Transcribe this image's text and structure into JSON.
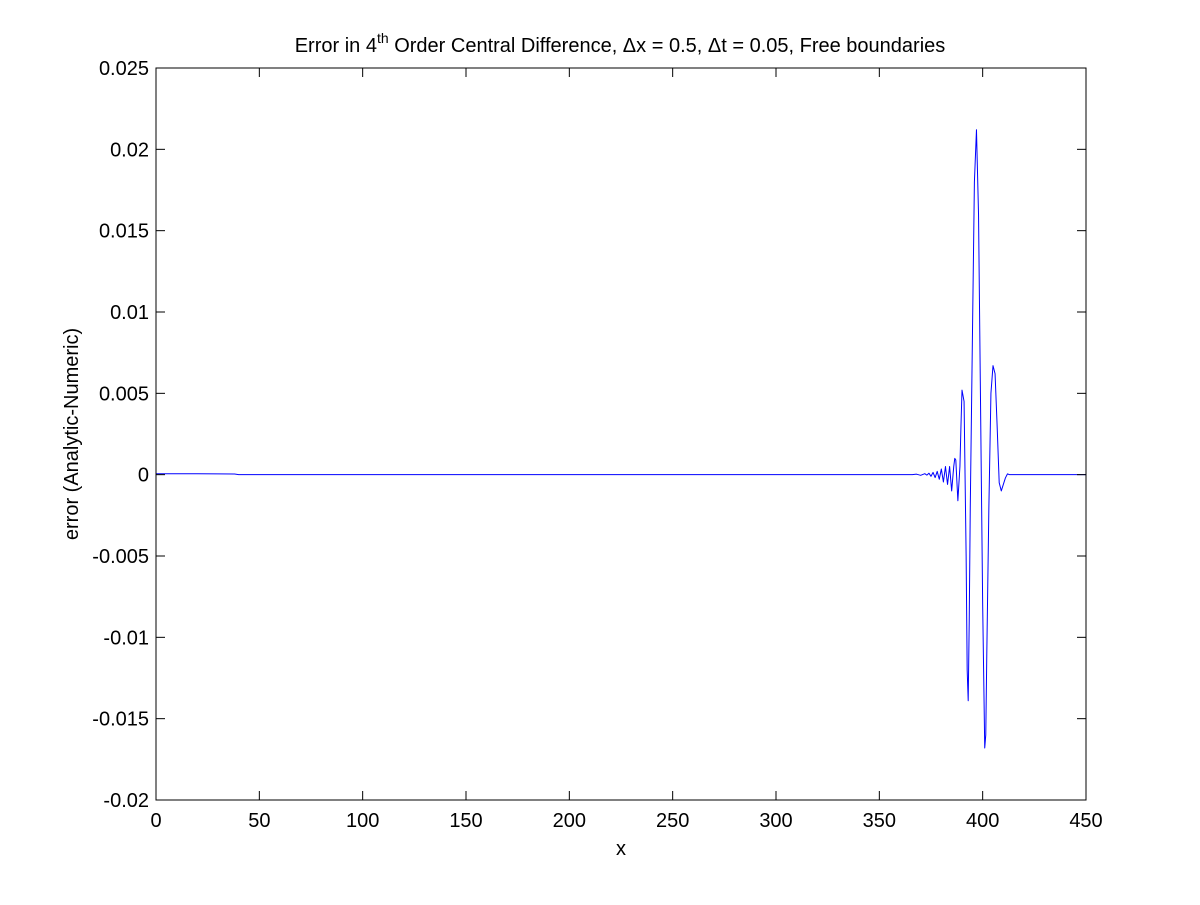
{
  "chart_data": {
    "type": "line",
    "title": {
      "prefix": "Error in 4",
      "superscript": "th",
      "suffix": " Order Central Difference, Δx = 0.5, Δt = 0.05, Free boundaries"
    },
    "xlabel": "x",
    "ylabel": "error (Analytic-Numeric)",
    "xlim": [
      0,
      450
    ],
    "ylim": [
      -0.02,
      0.025
    ],
    "x_ticks": [
      0,
      50,
      100,
      150,
      200,
      250,
      300,
      350,
      400,
      450
    ],
    "y_ticks": [
      -0.02,
      -0.015,
      -0.01,
      -0.005,
      0,
      0.005,
      0.01,
      0.015,
      0.02,
      0.025
    ],
    "x_tick_labels": [
      "0",
      "50",
      "100",
      "150",
      "200",
      "250",
      "300",
      "350",
      "400",
      "450"
    ],
    "y_tick_labels": [
      "-0.02",
      "-0.015",
      "-0.01",
      "-0.005",
      "0",
      "0.005",
      "0.01",
      "0.015",
      "0.02",
      "0.025"
    ],
    "grid": false,
    "box": true,
    "series": [
      {
        "color": "#0000ff",
        "x": [
          0,
          10,
          20,
          30,
          38,
          40,
          100,
          200,
          300,
          360,
          366,
          368,
          370,
          372,
          373,
          374,
          375,
          376,
          377,
          378,
          379,
          380,
          381,
          382,
          383,
          384,
          385,
          386,
          386.5,
          387,
          388,
          389,
          389.5,
          390,
          391,
          392,
          392.5,
          393,
          393.5,
          394,
          395,
          396,
          397,
          398,
          399,
          400,
          401,
          401.5,
          402,
          403,
          404,
          405,
          406,
          407,
          408,
          409,
          410,
          411,
          412,
          413,
          414,
          416,
          420,
          450
        ],
        "y": [
          6e-05,
          6e-05,
          6e-05,
          5e-05,
          4e-05,
          0.0,
          0.0,
          0.0,
          0.0,
          0.0,
          0.0,
          3e-05,
          -4e-05,
          6e-05,
          -3e-05,
          9e-05,
          -0.0001,
          0.00014,
          -0.00018,
          0.0002,
          -0.00028,
          0.00035,
          -0.00045,
          0.0005,
          -0.0006,
          0.0005,
          -0.001,
          0.0005,
          0.001,
          0.0009,
          -0.0016,
          0.0005,
          0.003,
          0.0052,
          0.0045,
          -0.005,
          -0.012,
          -0.0139,
          -0.009,
          -0.002,
          0.008,
          0.018,
          0.0212,
          0.016,
          0.004,
          -0.008,
          -0.0168,
          -0.016,
          -0.011,
          -0.002,
          0.005,
          0.0067,
          0.0062,
          0.003,
          -0.0005,
          -0.001,
          -0.0006,
          -0.0002,
          5e-05,
          0.0,
          0.0,
          0.0,
          0.0,
          0.0
        ]
      }
    ]
  }
}
